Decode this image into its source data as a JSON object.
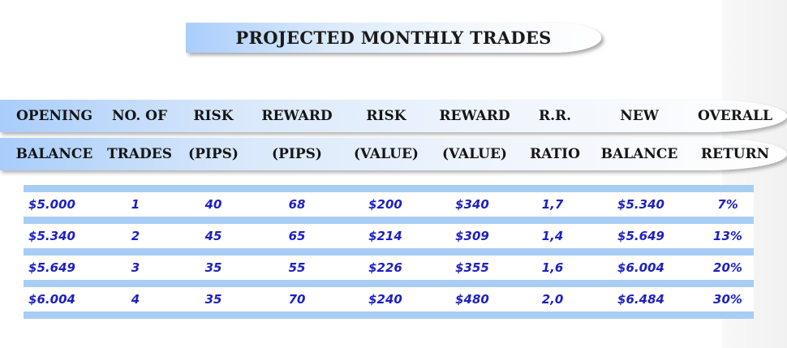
{
  "title": "PROJECTED MONTHLY TRADES",
  "header_row1": [
    "OPENING",
    "NO. OF",
    "RISK",
    "REWARD",
    "RISK",
    "REWARD",
    "R.R.",
    "NEW",
    "OVERALL"
  ],
  "header_row2": [
    "BALANCE",
    "TRADES",
    "(PIPS)",
    "(PIPS)",
    "(VALUE)",
    "(VALUE)",
    "RATIO",
    "BALANCE",
    "RETURN"
  ],
  "rows": [
    [
      "$5.000",
      "1",
      "40",
      "68",
      "$200",
      "$340",
      "1,7",
      "$5.340",
      "7%"
    ],
    [
      "$5.340",
      "2",
      "45",
      "65",
      "$214",
      "$309",
      "1,4",
      "$5.649",
      "13%"
    ],
    [
      "$5.649",
      "3",
      "35",
      "55",
      "$226",
      "$355",
      "1,6",
      "$6.004",
      "20%"
    ],
    [
      "$6.004",
      "4",
      "35",
      "70",
      "$240",
      "$480",
      "2,0",
      "$6.484",
      "30%"
    ]
  ],
  "colors": {
    "accent_blue": "#a8cdf5",
    "data_text": "#1d1fc4",
    "header_text": "#151515"
  }
}
